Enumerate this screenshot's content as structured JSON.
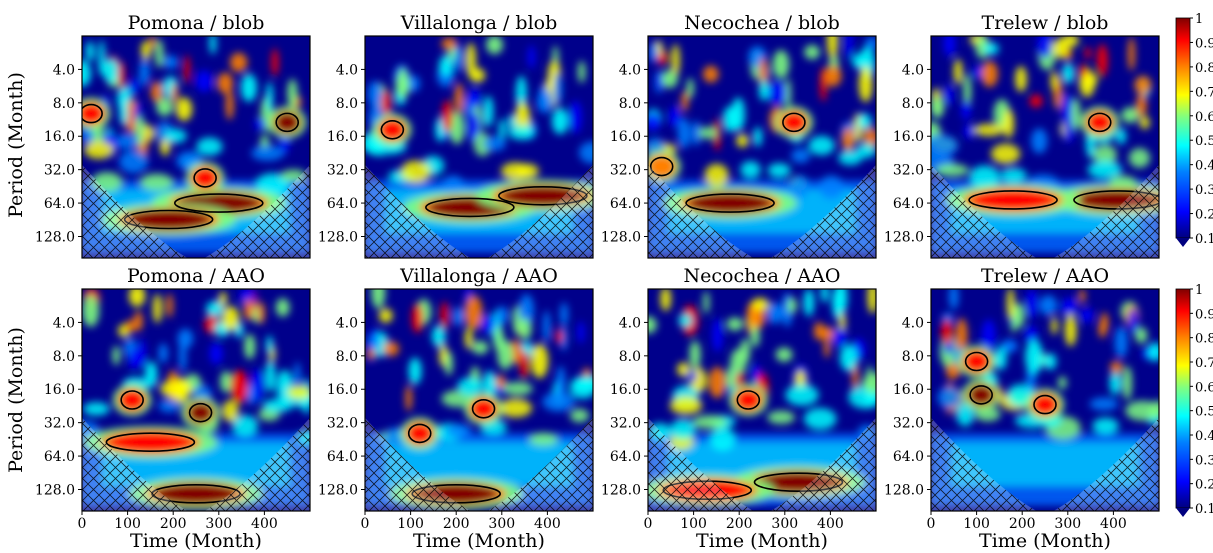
{
  "figure": {
    "ylabel": "Period (Month)",
    "xlabel": "Time (Month)"
  },
  "colorbar": {
    "ticks": [
      "1",
      "0.9",
      "0.8",
      "0.7",
      "0.6",
      "0.5",
      "0.4",
      "0.3",
      "0.2",
      "0.1"
    ],
    "colormap": [
      "#000080",
      "#0000ff",
      "#0080ff",
      "#00ffff",
      "#80ff80",
      "#ffff00",
      "#ff8000",
      "#ff0000",
      "#800000"
    ]
  },
  "chart_data": [
    {
      "type": "heatmap",
      "title": "Pomona / blob",
      "xlabel": "",
      "ylabel": "Period (Month)",
      "y_ticks": [
        "4.0",
        "8.0",
        "16.0",
        "32.0",
        "64.0",
        "128.0"
      ],
      "x_ticks": [],
      "xlim": [
        0,
        500
      ],
      "ylim_period": [
        2,
        200
      ],
      "ylog": true,
      "color_range": [
        0.1,
        1
      ],
      "hotspots": [
        {
          "t": 300,
          "period": 64,
          "value": 0.9
        },
        {
          "t": 190,
          "period": 90,
          "value": 0.9
        },
        {
          "t": 270,
          "period": 38,
          "value": 0.8
        },
        {
          "t": 20,
          "period": 10,
          "value": 0.8
        },
        {
          "t": 450,
          "period": 12,
          "value": 0.9
        }
      ]
    },
    {
      "type": "heatmap",
      "title": "Villalonga / blob",
      "xlabel": "",
      "ylabel": "",
      "y_ticks": [
        "4.0",
        "8.0",
        "16.0",
        "32.0",
        "64.0",
        "128.0"
      ],
      "x_ticks": [],
      "xlim": [
        0,
        500
      ],
      "ylim_period": [
        2,
        200
      ],
      "ylog": true,
      "color_range": [
        0.1,
        1
      ],
      "hotspots": [
        {
          "t": 230,
          "period": 70,
          "value": 0.9
        },
        {
          "t": 390,
          "period": 55,
          "value": 0.9
        },
        {
          "t": 60,
          "period": 14,
          "value": 0.85
        }
      ]
    },
    {
      "type": "heatmap",
      "title": "Necochea / blob",
      "xlabel": "",
      "ylabel": "",
      "y_ticks": [
        "4.0",
        "8.0",
        "16.0",
        "32.0",
        "64.0",
        "128.0"
      ],
      "x_ticks": [],
      "xlim": [
        0,
        500
      ],
      "ylim_period": [
        2,
        200
      ],
      "ylog": true,
      "color_range": [
        0.1,
        1
      ],
      "hotspots": [
        {
          "t": 180,
          "period": 64,
          "value": 0.9
        },
        {
          "t": 320,
          "period": 12,
          "value": 0.8
        },
        {
          "t": 30,
          "period": 30,
          "value": 0.7
        }
      ]
    },
    {
      "type": "heatmap",
      "title": "Trelew / blob",
      "xlabel": "",
      "ylabel": "",
      "y_ticks": [
        "4.0",
        "8.0",
        "16.0",
        "32.0",
        "64.0",
        "128.0"
      ],
      "x_ticks": [],
      "xlim": [
        0,
        500
      ],
      "ylim_period": [
        2,
        200
      ],
      "ylog": true,
      "color_range": [
        0.1,
        1
      ],
      "hotspots": [
        {
          "t": 410,
          "period": 60,
          "value": 0.95
        },
        {
          "t": 180,
          "period": 60,
          "value": 0.85
        },
        {
          "t": 370,
          "period": 12,
          "value": 0.8
        }
      ]
    },
    {
      "type": "heatmap",
      "title": "Pomona / AAO",
      "xlabel": "Time (Month)",
      "ylabel": "Period (Month)",
      "y_ticks": [
        "4.0",
        "8.0",
        "16.0",
        "32.0",
        "64.0",
        "128.0"
      ],
      "x_ticks": [
        "0",
        "100",
        "200",
        "300",
        "400"
      ],
      "xlim": [
        0,
        500
      ],
      "ylim_period": [
        2,
        200
      ],
      "ylog": true,
      "color_range": [
        0.1,
        1
      ],
      "hotspots": [
        {
          "t": 110,
          "period": 20,
          "value": 0.85
        },
        {
          "t": 260,
          "period": 26,
          "value": 0.9
        },
        {
          "t": 150,
          "period": 48,
          "value": 0.8
        },
        {
          "t": 250,
          "period": 140,
          "value": 0.95
        }
      ]
    },
    {
      "type": "heatmap",
      "title": "Villalonga / AAO",
      "xlabel": "Time (Month)",
      "ylabel": "",
      "y_ticks": [
        "4.0",
        "8.0",
        "16.0",
        "32.0",
        "64.0",
        "128.0"
      ],
      "x_ticks": [
        "0",
        "100",
        "200",
        "300",
        "400"
      ],
      "xlim": [
        0,
        500
      ],
      "ylim_period": [
        2,
        200
      ],
      "ylog": true,
      "color_range": [
        0.1,
        1
      ],
      "hotspots": [
        {
          "t": 120,
          "period": 40,
          "value": 0.8
        },
        {
          "t": 260,
          "period": 24,
          "value": 0.85
        },
        {
          "t": 200,
          "period": 140,
          "value": 0.95
        }
      ]
    },
    {
      "type": "heatmap",
      "title": "Necochea / AAO",
      "xlabel": "Time (Month)",
      "ylabel": "",
      "y_ticks": [
        "4.0",
        "8.0",
        "16.0",
        "32.0",
        "64.0",
        "128.0"
      ],
      "x_ticks": [
        "0",
        "100",
        "200",
        "300",
        "400"
      ],
      "xlim": [
        0,
        500
      ],
      "ylim_period": [
        2,
        200
      ],
      "ylog": true,
      "color_range": [
        0.1,
        1
      ],
      "hotspots": [
        {
          "t": 220,
          "period": 20,
          "value": 0.8
        },
        {
          "t": 330,
          "period": 110,
          "value": 0.9
        },
        {
          "t": 130,
          "period": 130,
          "value": 0.85
        }
      ]
    },
    {
      "type": "heatmap",
      "title": "Trelew / AAO",
      "xlabel": "Time (Month)",
      "ylabel": "",
      "y_ticks": [
        "4.0",
        "8.0",
        "16.0",
        "32.0",
        "64.0",
        "128.0"
      ],
      "x_ticks": [
        "0",
        "100",
        "200",
        "300",
        "400"
      ],
      "xlim": [
        0,
        500
      ],
      "ylim_period": [
        2,
        200
      ],
      "ylog": true,
      "color_range": [
        0.1,
        1
      ],
      "hotspots": [
        {
          "t": 110,
          "period": 18,
          "value": 0.95
        },
        {
          "t": 250,
          "period": 22,
          "value": 0.85
        },
        {
          "t": 100,
          "period": 9,
          "value": 0.8
        }
      ]
    }
  ]
}
